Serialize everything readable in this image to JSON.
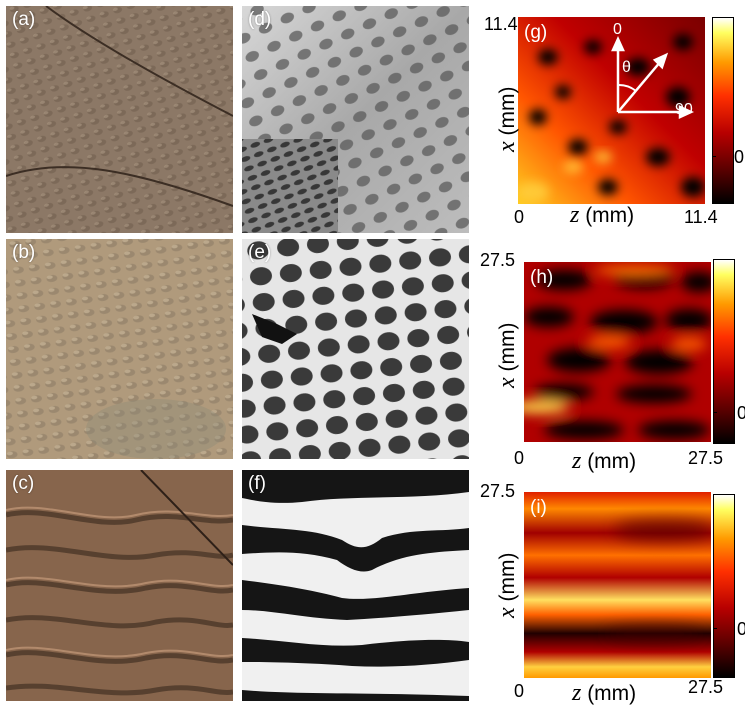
{
  "panels": {
    "a": "(a)",
    "b": "(b)",
    "c": "(c)",
    "d": "(d)",
    "e": "(e)",
    "f": "(f)",
    "g": "(g)",
    "h": "(h)",
    "i": "(i)"
  },
  "colors": {
    "photo_a": "#8c7866",
    "photo_b": "#b09a7c",
    "photo_c": "#87654c",
    "heat_low": "#000000",
    "heat_high": "#ffff80"
  },
  "g": {
    "y_top": "11.4",
    "x_left": "0",
    "x_right": "11.4",
    "cbar_tick": "0",
    "x_label_var": "z",
    "x_label_unit": "(mm)",
    "y_label_var": "x",
    "y_label_unit": "(mm)",
    "inset": {
      "zero": "0",
      "ninety": "90",
      "theta": "θ"
    }
  },
  "h": {
    "y_top": "27.5",
    "x_left": "0",
    "x_right": "27.5",
    "cbar_tick": "0",
    "x_label_var": "z",
    "x_label_unit": "(mm)",
    "y_label_var": "x",
    "y_label_unit": "(mm)"
  },
  "i": {
    "y_top": "27.5",
    "x_left": "0",
    "x_right": "27.5",
    "cbar_tick": "0",
    "x_label_var": "z",
    "x_label_unit": "(mm)",
    "y_label_var": "x",
    "y_label_unit": "(mm)"
  }
}
